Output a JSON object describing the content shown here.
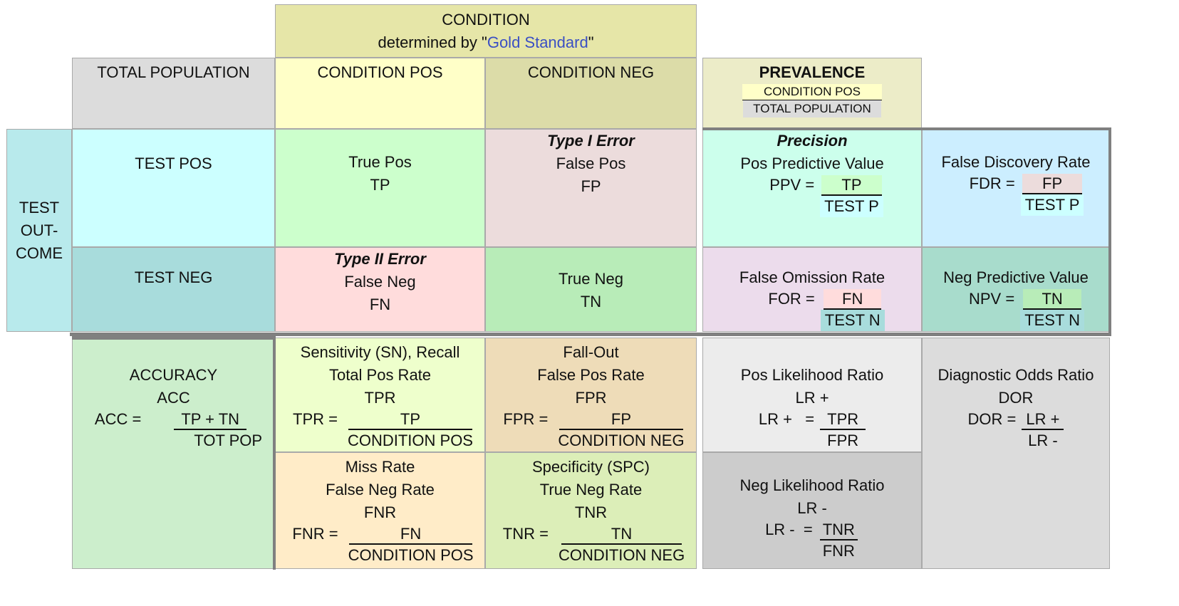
{
  "header": {
    "condition_title": "CONDITION",
    "condition_sub_prefix": "determined by \"",
    "condition_sub_link": "Gold Standard",
    "condition_sub_suffix": "\"",
    "total_population": "TOTAL POPULATION",
    "condition_pos": "CONDITION POS",
    "condition_neg": "CONDITION NEG",
    "prevalence": "PREVALENCE",
    "prevalence_num": "CONDITION POS",
    "prevalence_den": "TOTAL POPULATION"
  },
  "test_outcome": [
    "TEST",
    "OUT-",
    "COME"
  ],
  "rows": {
    "test_pos": "TEST POS",
    "test_neg": "TEST NEG"
  },
  "matrix": {
    "tp": [
      "True Pos",
      "TP"
    ],
    "fp_title": "Type I Error",
    "fp": [
      "False Pos",
      "FP"
    ],
    "fn_title": "Type II Error",
    "fn": [
      "False Neg",
      "FN"
    ],
    "tn": [
      "True Neg",
      "TN"
    ]
  },
  "ppv": {
    "title": "Precision",
    "name": "Pos Predictive Value",
    "lhs": "PPV =",
    "num": "TP",
    "den": "TEST P"
  },
  "fdr": {
    "name": "False Discovery Rate",
    "lhs": "FDR =",
    "num": "FP",
    "den": "TEST P"
  },
  "for": {
    "name": "False Omission Rate",
    "lhs": "FOR =",
    "num": "FN",
    "den": "TEST N"
  },
  "npv": {
    "name": "Neg Predictive Value",
    "lhs": "NPV =",
    "num": "TN",
    "den": "TEST N"
  },
  "acc": {
    "name": "ACCURACY",
    "abbr": "ACC",
    "lhs": "ACC =",
    "num": "TP + TN",
    "den": "TOT POP"
  },
  "tpr": {
    "name1": "Sensitivity (SN), Recall",
    "name2": "Total Pos Rate",
    "abbr": "TPR",
    "lhs": "TPR =",
    "num": "TP",
    "den": "CONDITION POS"
  },
  "fpr": {
    "name1": "Fall-Out",
    "name2": "False Pos Rate",
    "abbr": "FPR",
    "lhs": "FPR =",
    "num": "FP",
    "den": "CONDITION NEG"
  },
  "fnr": {
    "name1": "Miss Rate",
    "name2": "False Neg Rate",
    "abbr": "FNR",
    "lhs": "FNR =",
    "num": "FN",
    "den": "CONDITION POS"
  },
  "tnr": {
    "name1": "Specificity (SPC)",
    "name2": "True Neg Rate",
    "abbr": "TNR",
    "lhs": "TNR =",
    "num": "TN",
    "den": "CONDITION NEG"
  },
  "lrp": {
    "name": "Pos Likelihood Ratio",
    "abbr": "LR +",
    "lhs": "LR +   =",
    "num": "TPR",
    "den": "FPR"
  },
  "lrn": {
    "name": "Neg Likelihood Ratio",
    "abbr": "LR -",
    "lhs": "LR -  =",
    "num": "TNR",
    "den": "FNR"
  },
  "dor": {
    "name": "Diagnostic Odds Ratio",
    "abbr": "DOR",
    "lhs": "DOR =",
    "num": "LR +",
    "den": "LR -"
  },
  "colors": {
    "condition_header": "#e6e6a8",
    "total_population": "#dcdcdc",
    "condition_pos": "#ffffc8",
    "condition_neg": "#dcdca8",
    "prevalence": "#ececc8",
    "test_outcome": "#b8eaec",
    "test_pos": "#ccffff",
    "test_neg": "#a8dcdc",
    "tp": "#ccffcc",
    "fp": "#ecdcdc",
    "fn": "#ffdcdc",
    "tn": "#b8ecb8",
    "ppv": "#ccffec",
    "fdr": "#cceeff",
    "for": "#ecdcec",
    "npv": "#a8dccc",
    "acc": "#cceecc",
    "tpr": "#eeffcc",
    "fpr": "#eedcb8",
    "fnr": "#ffecc8",
    "tnr": "#dceeb8",
    "lrp": "#ececec",
    "lrn": "#cccccc",
    "dor": "#dcdcdc"
  }
}
